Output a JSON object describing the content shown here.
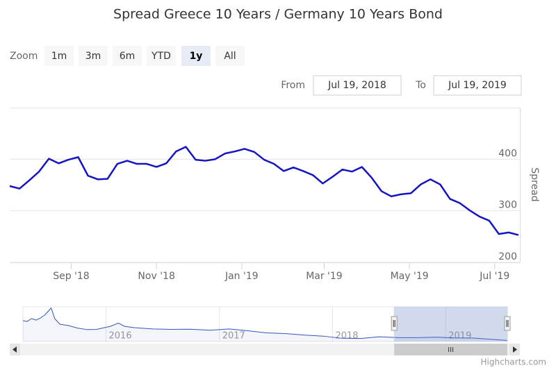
{
  "chart_data": {
    "type": "line",
    "title": "Spread Greece 10 Years / Germany 10 Years Bond",
    "range_selector": {
      "zoom_label": "Zoom",
      "buttons": [
        "1m",
        "3m",
        "6m",
        "YTD",
        "1y",
        "All"
      ],
      "selected": 4,
      "from_label": "From",
      "from": "Jul 19, 2018",
      "to_label": "To",
      "to": "Jul 19, 2019"
    },
    "y_axis_title": "Spread",
    "x": [
      "2018-07-19",
      "2018-07-26",
      "2018-08-02",
      "2018-08-09",
      "2018-08-16",
      "2018-08-23",
      "2018-08-30",
      "2018-09-06",
      "2018-09-13",
      "2018-09-20",
      "2018-09-27",
      "2018-10-04",
      "2018-10-11",
      "2018-10-18",
      "2018-10-25",
      "2018-11-01",
      "2018-11-08",
      "2018-11-15",
      "2018-11-22",
      "2018-11-29",
      "2018-12-06",
      "2018-12-13",
      "2018-12-20",
      "2018-12-27",
      "2019-01-03",
      "2019-01-10",
      "2019-01-17",
      "2019-01-24",
      "2019-01-31",
      "2019-02-07",
      "2019-02-14",
      "2019-02-21",
      "2019-02-28",
      "2019-03-07",
      "2019-03-14",
      "2019-03-21",
      "2019-03-28",
      "2019-04-04",
      "2019-04-11",
      "2019-04-18",
      "2019-04-25",
      "2019-05-02",
      "2019-05-09",
      "2019-05-16",
      "2019-05-23",
      "2019-05-30",
      "2019-06-06",
      "2019-06-13",
      "2019-06-20",
      "2019-06-27",
      "2019-07-04",
      "2019-07-11",
      "2019-07-18"
    ],
    "series": [
      {
        "name": "Spread",
        "color": "#1414c4",
        "values": [
          348,
          343,
          359,
          376,
          401,
          392,
          399,
          404,
          368,
          361,
          362,
          391,
          397,
          391,
          391,
          385,
          392,
          415,
          424,
          399,
          397,
          400,
          411,
          415,
          420,
          414,
          399,
          391,
          377,
          384,
          377,
          369,
          353,
          366,
          380,
          376,
          385,
          364,
          338,
          328,
          332,
          334,
          351,
          361,
          351,
          323,
          315,
          301,
          289,
          281,
          255,
          258,
          253
        ]
      }
    ],
    "xlim": [
      "2018-07-19",
      "2019-07-19"
    ],
    "xticks": [
      {
        "value": "2018-09-01",
        "label": "Sep '18"
      },
      {
        "value": "2018-11-01",
        "label": "Nov '18"
      },
      {
        "value": "2019-01-01",
        "label": "Jan '19"
      },
      {
        "value": "2019-03-01",
        "label": "Mar '19"
      },
      {
        "value": "2019-05-01",
        "label": "May '19"
      },
      {
        "value": "2019-07-01",
        "label": "Jul '19"
      }
    ],
    "ylim": [
      200,
      500
    ],
    "yticks": [
      200,
      300,
      400
    ],
    "grid": true,
    "navigator": {
      "x": [
        "2015-04-08",
        "2015-04-22",
        "2015-05-06",
        "2015-05-20",
        "2015-06-03",
        "2015-06-17",
        "2015-06-29",
        "2015-07-08",
        "2015-07-20",
        "2015-08-05",
        "2015-09-01",
        "2015-10-01",
        "2015-11-01",
        "2015-12-01",
        "2016-01-15",
        "2016-02-10",
        "2016-03-01",
        "2016-04-01",
        "2016-06-01",
        "2016-08-01",
        "2016-10-01",
        "2016-12-01",
        "2017-02-01",
        "2017-04-01",
        "2017-06-01",
        "2017-08-01",
        "2017-10-01",
        "2017-12-01",
        "2018-02-01",
        "2018-04-01",
        "2018-06-01",
        "2018-08-01",
        "2018-10-01",
        "2018-12-01",
        "2019-02-01",
        "2019-04-01",
        "2019-06-01",
        "2019-07-18"
      ],
      "values": [
        1160,
        1130,
        1260,
        1190,
        1280,
        1420,
        1600,
        1750,
        1250,
        1000,
        940,
        820,
        750,
        760,
        900,
        1050,
        900,
        840,
        780,
        760,
        770,
        720,
        780,
        700,
        600,
        570,
        500,
        450,
        350,
        340,
        420,
        380,
        380,
        400,
        370,
        360,
        300,
        253
      ],
      "color": "#3355bb",
      "xlim": [
        "2015-04-08",
        "2019-07-19"
      ],
      "ylim": [
        200,
        1800
      ],
      "xticks": [
        {
          "value": "2016-01-01",
          "label": "2016"
        },
        {
          "value": "2017-01-01",
          "label": "2017"
        },
        {
          "value": "2018-01-01",
          "label": "2018"
        },
        {
          "value": "2019-01-01",
          "label": "2019"
        }
      ]
    },
    "credits": "Highcharts.com"
  }
}
